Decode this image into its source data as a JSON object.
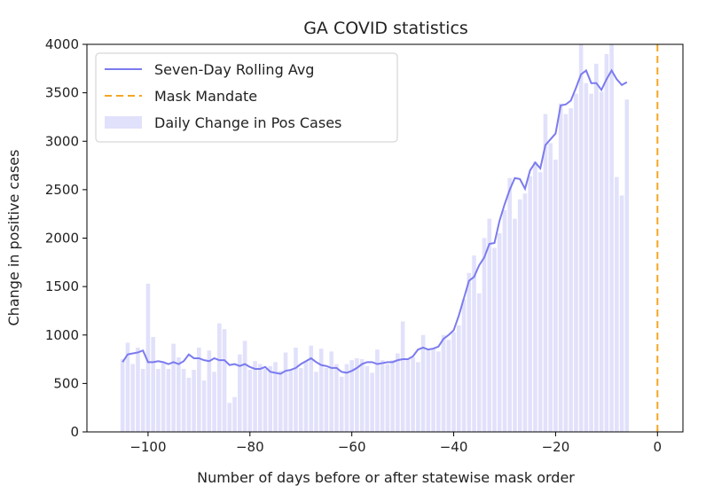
{
  "chart_data": {
    "type": "bar",
    "title": "GA COVID statistics",
    "xlabel": "Number of days before or after statewise mask order",
    "ylabel": "Change in positive cases",
    "xlim": [
      -112,
      5
    ],
    "ylim": [
      0,
      4000
    ],
    "xticks": [
      -100,
      -80,
      -60,
      -40,
      -20,
      0
    ],
    "xtick_labels": [
      "−100",
      "−80",
      "−60",
      "−40",
      "−20",
      "0"
    ],
    "yticks": [
      0,
      500,
      1000,
      1500,
      2000,
      2500,
      3000,
      3500,
      4000
    ],
    "ytick_labels": [
      "0",
      "500",
      "1000",
      "1500",
      "2000",
      "2500",
      "3000",
      "3500",
      "4000"
    ],
    "grid": false,
    "legend_position": "top-left",
    "legend": [
      {
        "label": "Seven-Day Rolling Avg",
        "kind": "line",
        "color": "#7b7bef"
      },
      {
        "label": "Mask Mandate",
        "kind": "dashed",
        "color": "#f5a623"
      },
      {
        "label": "Daily Change in Pos Cases",
        "kind": "patch",
        "color": "#e1e1fb"
      }
    ],
    "series": [
      {
        "name": "Daily Change in Pos Cases",
        "kind": "bar",
        "color": "#e1e1fb",
        "x": [
          -105,
          -104,
          -103,
          -102,
          -101,
          -100,
          -99,
          -98,
          -97,
          -96,
          -95,
          -94,
          -93,
          -92,
          -91,
          -90,
          -89,
          -88,
          -87,
          -86,
          -85,
          -84,
          -83,
          -82,
          -81,
          -80,
          -79,
          -78,
          -77,
          -76,
          -75,
          -74,
          -73,
          -72,
          -71,
          -70,
          -69,
          -68,
          -67,
          -66,
          -65,
          -64,
          -63,
          -62,
          -61,
          -60,
          -59,
          -58,
          -57,
          -56,
          -55,
          -54,
          -53,
          -52,
          -51,
          -50,
          -49,
          -48,
          -47,
          -46,
          -45,
          -44,
          -43,
          -42,
          -41,
          -40,
          -39,
          -38,
          -37,
          -36,
          -35,
          -34,
          -33,
          -32,
          -31,
          -30,
          -29,
          -28,
          -27,
          -26,
          -25,
          -24,
          -23,
          -22,
          -21,
          -20,
          -19,
          -18,
          -17,
          -16,
          -15,
          -14,
          -13,
          -12,
          -11,
          -10,
          -9,
          -8,
          -7,
          -6
        ],
        "values": [
          750,
          920,
          700,
          870,
          650,
          1530,
          980,
          650,
          720,
          650,
          910,
          770,
          650,
          560,
          640,
          870,
          530,
          840,
          620,
          1120,
          1060,
          300,
          360,
          800,
          940,
          640,
          730,
          700,
          650,
          680,
          720,
          630,
          820,
          640,
          870,
          660,
          730,
          890,
          620,
          860,
          660,
          830,
          700,
          570,
          700,
          740,
          760,
          750,
          680,
          610,
          850,
          740,
          700,
          740,
          810,
          1140,
          750,
          770,
          720,
          1000,
          850,
          860,
          830,
          1000,
          950,
          1030,
          1100,
          1370,
          1640,
          1820,
          1430,
          2000,
          2200,
          1900,
          2050,
          2290,
          2620,
          2200,
          2400,
          2460,
          2640,
          2790,
          2680,
          3280,
          2980,
          2810,
          3390,
          3280,
          3340,
          3490,
          4010,
          3600,
          3490,
          3800,
          3510,
          3900,
          4010,
          2630,
          2440,
          3430
        ]
      },
      {
        "name": "Seven-Day Rolling Avg",
        "kind": "line",
        "color": "#7b7bef",
        "x": [
          -105,
          -104,
          -103,
          -102,
          -101,
          -100,
          -99,
          -98,
          -97,
          -96,
          -95,
          -94,
          -93,
          -92,
          -91,
          -90,
          -89,
          -88,
          -87,
          -86,
          -85,
          -84,
          -83,
          -82,
          -81,
          -80,
          -79,
          -78,
          -77,
          -76,
          -75,
          -74,
          -73,
          -72,
          -71,
          -70,
          -69,
          -68,
          -67,
          -66,
          -65,
          -64,
          -63,
          -62,
          -61,
          -60,
          -59,
          -58,
          -57,
          -56,
          -55,
          -54,
          -53,
          -52,
          -51,
          -50,
          -49,
          -48,
          -47,
          -46,
          -45,
          -44,
          -43,
          -42,
          -41,
          -40,
          -39,
          -38,
          -37,
          -36,
          -35,
          -34,
          -33,
          -32,
          -31,
          -30,
          -29,
          -28,
          -27,
          -26,
          -25,
          -24,
          -23,
          -22,
          -21,
          -20,
          -19,
          -18,
          -17,
          -16,
          -15,
          -14,
          -13,
          -12,
          -11,
          -10,
          -9,
          -8,
          -7,
          -6
        ],
        "values": [
          720,
          800,
          810,
          820,
          840,
          720,
          720,
          730,
          720,
          700,
          720,
          700,
          730,
          800,
          760,
          760,
          740,
          730,
          760,
          740,
          740,
          690,
          700,
          680,
          700,
          670,
          650,
          650,
          670,
          620,
          610,
          600,
          630,
          640,
          660,
          700,
          730,
          760,
          720,
          690,
          680,
          660,
          660,
          620,
          610,
          630,
          660,
          700,
          720,
          720,
          700,
          710,
          720,
          720,
          740,
          750,
          750,
          780,
          850,
          870,
          850,
          860,
          880,
          960,
          1000,
          1050,
          1200,
          1380,
          1560,
          1600,
          1720,
          1800,
          1940,
          1950,
          2180,
          2350,
          2500,
          2620,
          2610,
          2510,
          2700,
          2780,
          2720,
          2960,
          3020,
          3080,
          3370,
          3380,
          3420,
          3550,
          3690,
          3730,
          3600,
          3600,
          3530,
          3640,
          3730,
          3640,
          3580,
          3610
        ]
      },
      {
        "name": "Mask Mandate",
        "kind": "vline",
        "color": "#f5a623",
        "x": 0
      }
    ]
  }
}
